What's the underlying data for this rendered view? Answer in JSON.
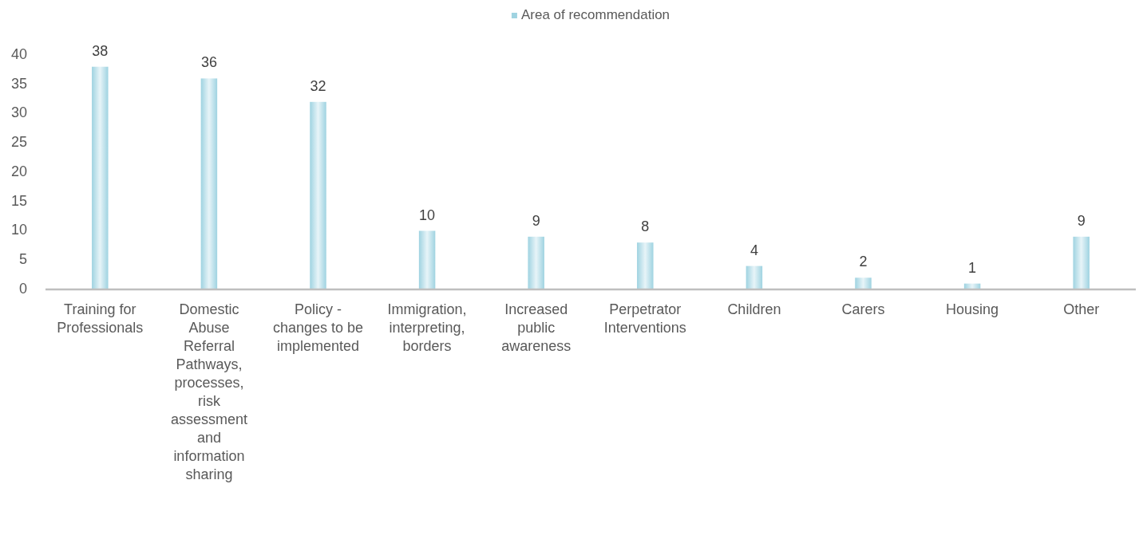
{
  "chart_data": {
    "type": "bar",
    "categories": [
      "Training for Professionals",
      "Domestic Abuse Referral Pathways, processes, risk assessment and information sharing",
      "Policy - changes to be implemented",
      "Immigration, interpreting, borders",
      "Increased public awareness",
      "Perpetrator Interventions",
      "Children",
      "Carers",
      "Housing",
      "Other"
    ],
    "series": [
      {
        "name": "Area of recommendation",
        "color": "#9fd3e1",
        "values": [
          38,
          36,
          32,
          10,
          9,
          8,
          4,
          2,
          1,
          9
        ]
      }
    ],
    "ylim": [
      0,
      40
    ],
    "yticks": [
      0,
      5,
      10,
      15,
      20,
      25,
      30,
      35,
      40
    ],
    "grid": false,
    "legend": "top",
    "data_labels": true
  }
}
